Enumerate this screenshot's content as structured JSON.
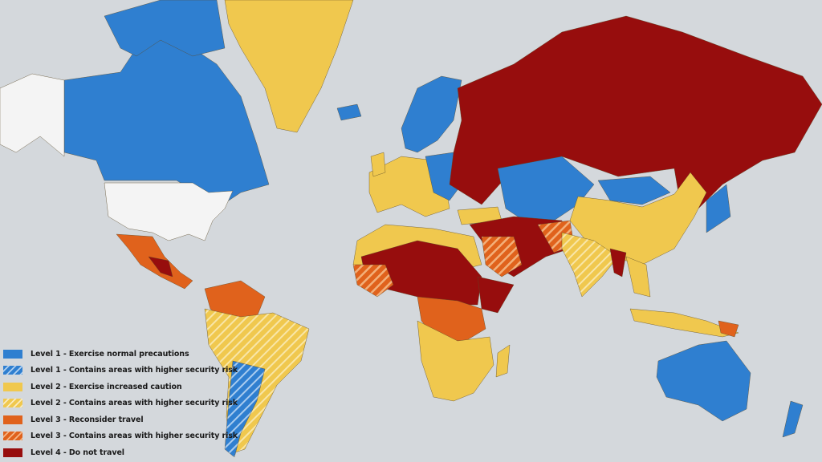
{
  "colors": {
    "ocean": "#d4d8dc",
    "level1": "#2f7fd0",
    "level2": "#f0c84e",
    "level3": "#e0621c",
    "level4": "#970d0d",
    "not_rated": "#f4f4f4"
  },
  "legend": [
    {
      "label": "Level 1 - Exercise normal precautions",
      "color": "#2f7fd0",
      "hatched": false
    },
    {
      "label": "Level 1 - Contains areas with higher security risk",
      "color": "#2f7fd0",
      "hatched": true
    },
    {
      "label": "Level 2 - Exercise increased caution",
      "color": "#f0c84e",
      "hatched": false
    },
    {
      "label": "Level 2 - Contains areas with higher security risk",
      "color": "#f0c84e",
      "hatched": true
    },
    {
      "label": "Level 3 - Reconsider travel",
      "color": "#e0621c",
      "hatched": false
    },
    {
      "label": "Level 3 - Contains areas with higher security risk",
      "color": "#e0621c",
      "hatched": true
    },
    {
      "label": "Level 4 - Do not travel",
      "color": "#970d0d",
      "hatched": false
    }
  ]
}
